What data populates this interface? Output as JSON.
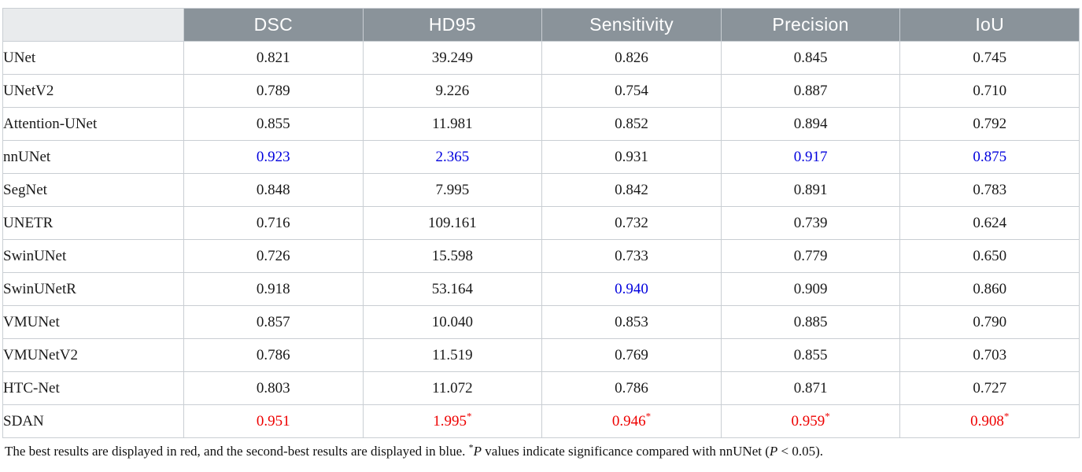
{
  "colors": {
    "best": "#ee0000",
    "second_best": "#0000dd",
    "header_bg": "#8a939a",
    "stub_bg": "#e9ebed",
    "border": "#c9ced3"
  },
  "table": {
    "columns": [
      "",
      "DSC",
      "HD95",
      "Sensitivity",
      "Precision",
      "IoU"
    ],
    "rows": [
      {
        "model": "UNet",
        "values": [
          "0.821",
          "39.249",
          "0.826",
          "0.845",
          "0.745"
        ],
        "cell_colors": [
          "black",
          "black",
          "black",
          "black",
          "black"
        ]
      },
      {
        "model": "UNetV2",
        "values": [
          "0.789",
          "9.226",
          "0.754",
          "0.887",
          "0.710"
        ],
        "cell_colors": [
          "black",
          "black",
          "black",
          "black",
          "black"
        ]
      },
      {
        "model": "Attention-UNet",
        "values": [
          "0.855",
          "11.981",
          "0.852",
          "0.894",
          "0.792"
        ],
        "cell_colors": [
          "black",
          "black",
          "black",
          "black",
          "black"
        ]
      },
      {
        "model": "nnUNet",
        "values": [
          "0.923",
          "2.365",
          "0.931",
          "0.917",
          "0.875"
        ],
        "cell_colors": [
          "second_best",
          "second_best",
          "black",
          "second_best",
          "second_best"
        ]
      },
      {
        "model": "SegNet",
        "values": [
          "0.848",
          "7.995",
          "0.842",
          "0.891",
          "0.783"
        ],
        "cell_colors": [
          "black",
          "black",
          "black",
          "black",
          "black"
        ]
      },
      {
        "model": "UNETR",
        "values": [
          "0.716",
          "109.161",
          "0.732",
          "0.739",
          "0.624"
        ],
        "cell_colors": [
          "black",
          "black",
          "black",
          "black",
          "black"
        ]
      },
      {
        "model": "SwinUNet",
        "values": [
          "0.726",
          "15.598",
          "0.733",
          "0.779",
          "0.650"
        ],
        "cell_colors": [
          "black",
          "black",
          "black",
          "black",
          "black"
        ]
      },
      {
        "model": "SwinUNetR",
        "values": [
          "0.918",
          "53.164",
          "0.940",
          "0.909",
          "0.860"
        ],
        "cell_colors": [
          "black",
          "black",
          "second_best",
          "black",
          "black"
        ]
      },
      {
        "model": "VMUNet",
        "values": [
          "0.857",
          "10.040",
          "0.853",
          "0.885",
          "0.790"
        ],
        "cell_colors": [
          "black",
          "black",
          "black",
          "black",
          "black"
        ]
      },
      {
        "model": "VMUNetV2",
        "values": [
          "0.786",
          "11.519",
          "0.769",
          "0.855",
          "0.703"
        ],
        "cell_colors": [
          "black",
          "black",
          "black",
          "black",
          "black"
        ]
      },
      {
        "model": "HTC-Net",
        "values": [
          "0.803",
          "11.072",
          "0.786",
          "0.871",
          "0.727"
        ],
        "cell_colors": [
          "black",
          "black",
          "black",
          "black",
          "black"
        ]
      },
      {
        "model": "SDAN",
        "values": [
          "0.951",
          "1.995*",
          "0.946*",
          "0.959*",
          "0.908*"
        ],
        "cell_colors": [
          "best",
          "best",
          "best",
          "best",
          "best"
        ]
      }
    ]
  },
  "footnote": {
    "text_main": "The best results are displayed in red, and the second-best results are displayed in blue. ",
    "sig_marker": "*",
    "p1": "P",
    "text_mid": " values indicate significance compared with nnUNet (",
    "p2": "P",
    "text_end": " < 0.05)."
  }
}
